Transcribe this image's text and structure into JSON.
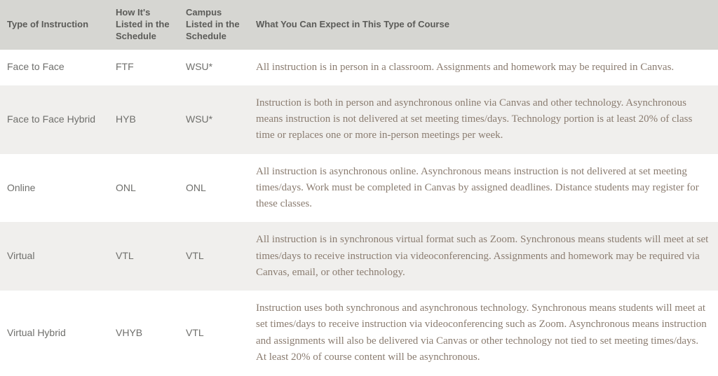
{
  "table": {
    "columns": [
      "Type of Instruction",
      "How It's Listed in the Schedule",
      "Campus Listed in the Schedule",
      "What You Can Expect in This Type of Course"
    ],
    "rows": [
      {
        "type": "Face to Face",
        "listed": "FTF",
        "campus": "WSU*",
        "expect": "All instruction is in person in a classroom. Assignments and homework may be required in Canvas."
      },
      {
        "type": "Face to Face Hybrid",
        "listed": "HYB",
        "campus": "WSU*",
        "expect": "Instruction is both in person and asynchronous online via Canvas and other technology. Asynchronous means instruction is not delivered at set meeting times/days. Technology portion is at least 20% of class time or replaces one or more in-person meetings per week."
      },
      {
        "type": "Online",
        "listed": "ONL",
        "campus": "ONL",
        "expect": "All instruction is asynchronous online. Asynchronous means instruction is not delivered at set meeting times/days. Work must be completed in Canvas by assigned deadlines. Distance students may register for these classes."
      },
      {
        "type": "Virtual",
        "listed": "VTL",
        "campus": "VTL",
        "expect": "All instruction is in synchronous virtual format such as Zoom. Synchronous means students will meet at set times/days to receive instruction via videoconferencing. Assignments and homework may be required via Canvas, email, or other technology."
      },
      {
        "type": "Virtual Hybrid",
        "listed": "VHYB",
        "campus": "VTL",
        "expect": "Instruction uses both synchronous and asynchronous technology. Synchronous means students will meet at set times/days to receive instruction via videoconferencing such as Zoom. Asynchronous means instruction and assignments will also be delivered via Canvas or other technology not tied to set meeting times/days. At least 20% of course content will be asynchronous."
      }
    ],
    "header_bg": "#d6d6d2",
    "row_even_bg": "#ffffff",
    "row_odd_bg": "#f0efed",
    "header_text_color": "#5b5b58",
    "label_text_color": "#6f6f6c",
    "body_text_color": "#8a7c70"
  }
}
